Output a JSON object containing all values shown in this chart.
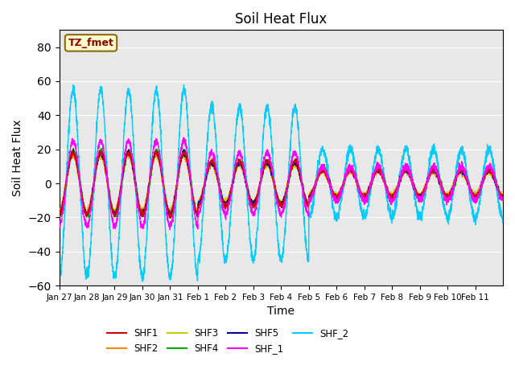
{
  "title": "Soil Heat Flux",
  "xlabel": "Time",
  "ylabel": "Soil Heat Flux",
  "ylim": [
    -60,
    90
  ],
  "yticks": [
    -60,
    -40,
    -20,
    0,
    20,
    40,
    60,
    80
  ],
  "background_color": "#e8e8e8",
  "legend_label": "TZ_fmet",
  "legend_box_color": "#ffffcc",
  "legend_box_edge": "#8B6914",
  "series_colors": {
    "SHF1": "#cc0000",
    "SHF2": "#ff8800",
    "SHF3": "#cccc00",
    "SHF4": "#00aa00",
    "SHF5": "#000099",
    "SHF_1": "#ff00ff",
    "SHF_2": "#00ccff"
  },
  "xtick_labels": [
    "Jan 27",
    "Jan 28",
    "Jan 29",
    "Jan 30",
    "Jan 31",
    "Feb 1",
    "Feb 2",
    "Feb 3",
    "Feb 4",
    "Feb 5",
    "Feb 6",
    "Feb 7",
    "Feb 8",
    "Feb 9",
    "Feb 10",
    "Feb 11"
  ],
  "num_points": 3360,
  "num_days": 16
}
